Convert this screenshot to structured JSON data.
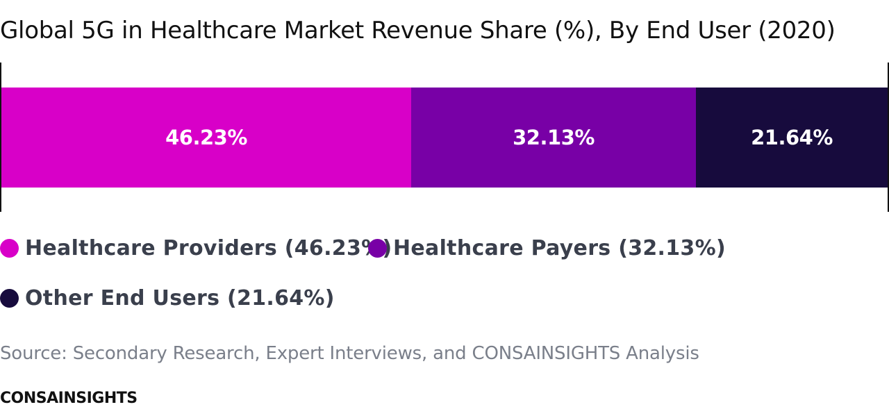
{
  "chart_data": {
    "type": "bar",
    "stacked": true,
    "orientation": "horizontal",
    "title": "Global 5G in Healthcare Market Revenue Share (%), By End User (2020)",
    "unit": "%",
    "series": [
      {
        "name": "Healthcare Providers",
        "value": 46.23,
        "label": "46.23%",
        "legend": "Healthcare Providers (46.23%)",
        "color": "#d800c8"
      },
      {
        "name": "Healthcare Payers",
        "value": 32.13,
        "label": "32.13%",
        "legend": "Healthcare Payers (32.13%)",
        "color": "#7800a6"
      },
      {
        "name": "Other End Users",
        "value": 21.64,
        "label": "21.64%",
        "legend": "Other End Users (21.64%)",
        "color": "#170b3d"
      }
    ],
    "legend_position": "bottom"
  },
  "source": "Source: Secondary Research, Expert Interviews, and CONSAINSIGHTS Analysis",
  "brand": "CONSAINSIGHTS"
}
